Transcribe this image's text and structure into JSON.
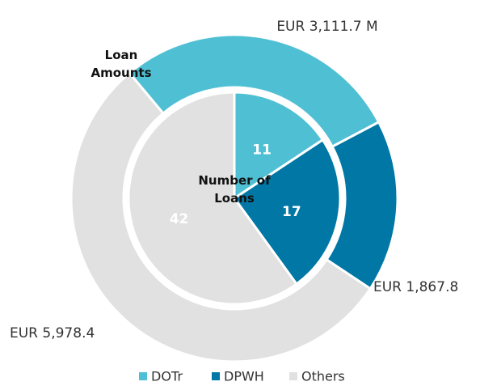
{
  "chart_data": [
    {
      "type": "donut",
      "title": "Loan Amounts",
      "categories": [
        "DOTr",
        "DPWH",
        "Others"
      ],
      "values": [
        3111.7,
        1867.8,
        5978.4
      ],
      "value_labels": [
        "EUR 3,111.7 M",
        "EUR 1,867.8",
        "EUR 5,978.4"
      ],
      "colors": [
        "#4fc0d3",
        "#0077a4",
        "#e1e1e1"
      ]
    },
    {
      "type": "pie",
      "title": "Number of Loans",
      "values": [
        11,
        17,
        42
      ],
      "colors": [
        "#4fc0d3",
        "#0077a4",
        "#e1e1e1"
      ]
    }
  ]
}
